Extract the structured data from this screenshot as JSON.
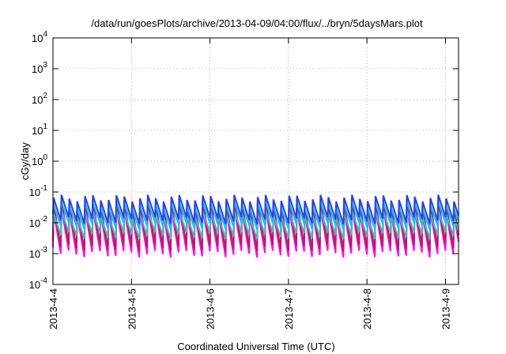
{
  "chart_data": {
    "type": "line",
    "title": "/data/run/goesPlots/archive/2013-04-09/04:00/flux/../bryn/5daysMars.plot",
    "xlabel": "Coordinated Universal Time (UTC)",
    "ylabel": "cGy/day",
    "yscale": "log",
    "ylim": [
      0.0001,
      10000
    ],
    "y_ticks": [
      {
        "value": 10000,
        "base": "10",
        "exp": "4"
      },
      {
        "value": 1000,
        "base": "10",
        "exp": "3"
      },
      {
        "value": 100,
        "base": "10",
        "exp": "2"
      },
      {
        "value": 10,
        "base": "10",
        "exp": "1"
      },
      {
        "value": 1,
        "base": "10",
        "exp": "0"
      },
      {
        "value": 0.1,
        "base": "10",
        "exp": "-1"
      },
      {
        "value": 0.01,
        "base": "10",
        "exp": "-2"
      },
      {
        "value": 0.001,
        "base": "10",
        "exp": "-3"
      },
      {
        "value": 0.0001,
        "base": "10",
        "exp": "-4"
      }
    ],
    "xlim": [
      "2013-04-04 00:00",
      "2013-04-09 04:00"
    ],
    "x_ticks": [
      {
        "label": "2013-4-4",
        "date": "2013-04-04"
      },
      {
        "label": "2013-4-5",
        "date": "2013-04-05"
      },
      {
        "label": "2013-4-6",
        "date": "2013-04-06"
      },
      {
        "label": "2013-4-7",
        "date": "2013-04-07"
      },
      {
        "label": "2013-4-8",
        "date": "2013-04-08"
      },
      {
        "label": "2013-4-9",
        "date": "2013-04-09"
      }
    ],
    "grid": true,
    "sawtooth_period_hours": 2.4,
    "series": [
      {
        "color": "#ff00ff",
        "peak": 0.025,
        "trough": 0.001
      },
      {
        "color": "#c0185a",
        "peak": 0.045,
        "trough": 0.0016
      },
      {
        "color": "#40c0a0",
        "peak": 0.02,
        "trough": 0.004
      },
      {
        "color": "#00c8ff",
        "peak": 0.04,
        "trough": 0.008
      },
      {
        "color": "#2040ff",
        "peak": 0.065,
        "trough": 0.012
      }
    ]
  }
}
